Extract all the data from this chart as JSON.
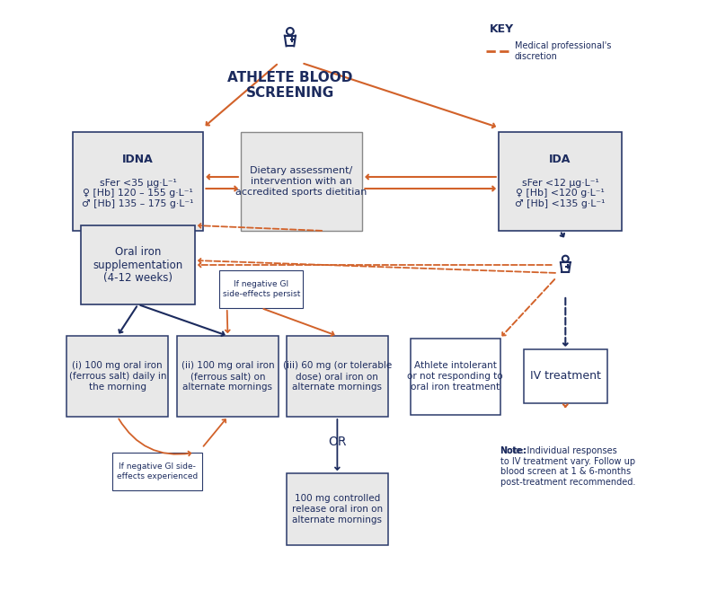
{
  "title": "ATHLETE BLOOD\nSCREENING",
  "bg_color": "#FFFFFF",
  "box_fill_gray": "#E8E8E8",
  "box_fill_white": "#FFFFFF",
  "box_edge_navy": "#2B3A6B",
  "orange": "#D2622A",
  "navy": "#1C2B5E",
  "idna_title": "IDNA",
  "idna_lines": [
    "sFer <35 μg·L⁻¹",
    "♀ [Hb] 120 – 155 g·L⁻¹",
    "♂ [Hb] 135 – 175 g·L⁻¹"
  ],
  "ida_title": "IDA",
  "ida_lines": [
    "sFer <12 μg·L⁻¹",
    "♀ [Hb] <120 g·L⁻¹",
    "♂ [Hb] <135 g·L⁻¹"
  ],
  "dietary_text": "Dietary assessment/\nintervention with an\naccredited sports dietitian",
  "oral_iron_text": "Oral iron\nsupplementation\n(4-12 weeks)",
  "box_i_text": "(i) 100 mg oral iron\n(ferrous salt) daily in\nthe morning",
  "box_ii_text": "(ii) 100 mg oral iron\n(ferrous salt) on\nalternate mornings",
  "box_iii_text": "(iii) 60 mg (or tolerable\ndose) oral iron on\nalternate mornings",
  "box_or_text": "100 mg controlled\nrelease oral iron on\nalternate mornings",
  "intolerant_text": "Athlete intolerant\nor not responding to\noral iron treatment",
  "iv_text": "IV treatment",
  "neg_gi_persist_text": "If negative GI\nside-effects persist",
  "neg_gi_exp_text": "If negative GI side-\neffects experienced",
  "note_bold": "Note:",
  "note_rest": " Individual responses\nto IV treatment vary. Follow up\nblood screen at 1 & 6-months\npost-treatment recommended.",
  "key_title": "KEY",
  "key_line": "Medical professional's\ndiscretion"
}
